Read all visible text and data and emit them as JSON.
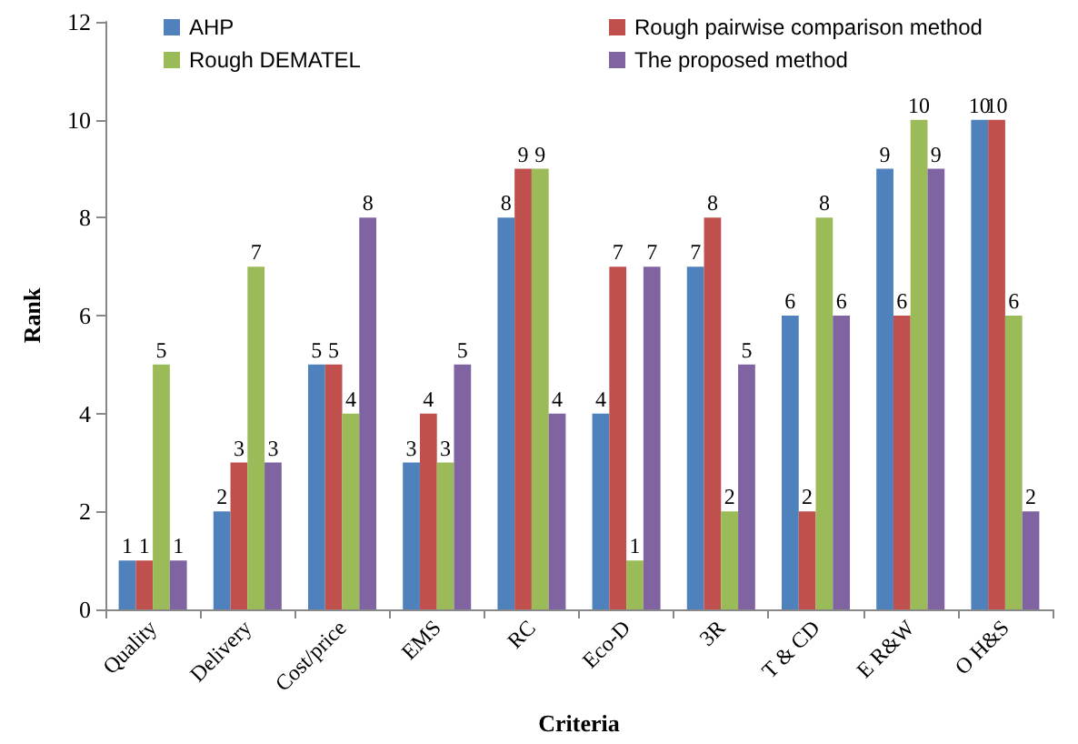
{
  "chart_data": {
    "type": "bar",
    "xlabel": "Criteria",
    "ylabel": "Rank",
    "categories": [
      "Quality",
      "Delivery",
      "Cost/price",
      "EMS",
      "RC",
      "Eco-D",
      "3R",
      "T & CD",
      "E R&W",
      "O H&S"
    ],
    "series": [
      {
        "name": "AHP",
        "color": "#4f81bd",
        "values": [
          1,
          2,
          5,
          3,
          8,
          4,
          7,
          6,
          9,
          10
        ]
      },
      {
        "name": "Rough pairwise comparison method",
        "color": "#c0504d",
        "values": [
          1,
          3,
          5,
          4,
          9,
          7,
          8,
          2,
          6,
          10
        ]
      },
      {
        "name": "Rough DEMATEL",
        "color": "#9bbb59",
        "values": [
          5,
          7,
          4,
          3,
          9,
          1,
          2,
          8,
          10,
          6
        ]
      },
      {
        "name": "The proposed method",
        "color": "#8064a2",
        "values": [
          1,
          3,
          8,
          5,
          4,
          7,
          5,
          6,
          9,
          2
        ]
      }
    ],
    "ylim": [
      0,
      12
    ],
    "yticks": [
      0,
      2,
      4,
      6,
      8,
      10,
      12
    ],
    "grid": false,
    "legend": "top",
    "data_labels": true
  }
}
